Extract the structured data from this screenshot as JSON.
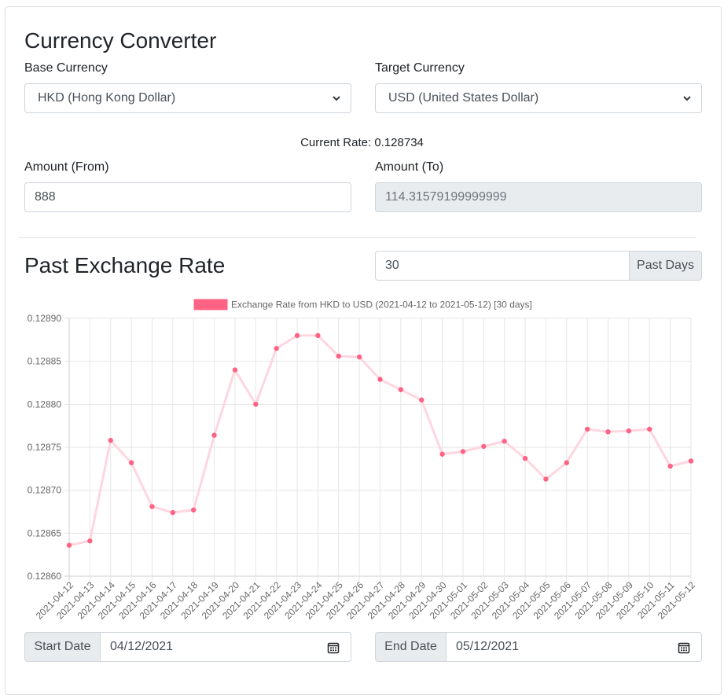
{
  "converter": {
    "title": "Currency Converter",
    "base_label": "Base Currency",
    "base_value": "HKD (Hong Kong Dollar)",
    "target_label": "Target Currency",
    "target_value": "USD (United States Dollar)",
    "current_rate_label": "Current Rate:",
    "current_rate_value": "0.128734",
    "amount_from_label": "Amount (From)",
    "amount_from_value": "888",
    "amount_to_label": "Amount (To)",
    "amount_to_value": "114.31579199999999"
  },
  "history": {
    "title": "Past Exchange Rate",
    "days_value": "30",
    "days_button": "Past Days",
    "start_label": "Start Date",
    "start_value": "04/12/2021",
    "end_label": "End Date",
    "end_value": "05/12/2021"
  },
  "icons": {
    "select": "chevron-down-icon",
    "date": "calendar-icon"
  },
  "colors": {
    "series": "#ff6384",
    "series_line": "#ffd6e0"
  },
  "chart_data": {
    "type": "line",
    "legend": "Exchange Rate from HKD to USD (2021-04-12 to 2021-05-12) [30 days]",
    "legend_position": "top",
    "grid": true,
    "ylim": [
      0.1286,
      0.1289
    ],
    "yticks": [
      "0.12890",
      "0.12885",
      "0.12880",
      "0.12875",
      "0.12870",
      "0.12865",
      "0.12860"
    ],
    "categories": [
      "2021-04-12",
      "2021-04-13",
      "2021-04-14",
      "2021-04-15",
      "2021-04-16",
      "2021-04-17",
      "2021-04-18",
      "2021-04-19",
      "2021-04-20",
      "2021-04-21",
      "2021-04-22",
      "2021-04-23",
      "2021-04-24",
      "2021-04-25",
      "2021-04-26",
      "2021-04-27",
      "2021-04-28",
      "2021-04-29",
      "2021-04-30",
      "2021-05-01",
      "2021-05-02",
      "2021-05-03",
      "2021-05-04",
      "2021-05-05",
      "2021-05-06",
      "2021-05-07",
      "2021-05-08",
      "2021-05-09",
      "2021-05-10",
      "2021-05-11",
      "2021-05-12"
    ],
    "values": [
      0.128636,
      0.128641,
      0.128758,
      0.128732,
      0.128681,
      0.128674,
      0.128677,
      0.128764,
      0.12884,
      0.1288,
      0.128865,
      0.12888,
      0.12888,
      0.128856,
      0.128855,
      0.128829,
      0.128817,
      0.128805,
      0.128742,
      0.128745,
      0.128751,
      0.128757,
      0.128737,
      0.128713,
      0.128732,
      0.128771,
      0.128768,
      0.128769,
      0.128771,
      0.128728,
      0.128734
    ]
  }
}
